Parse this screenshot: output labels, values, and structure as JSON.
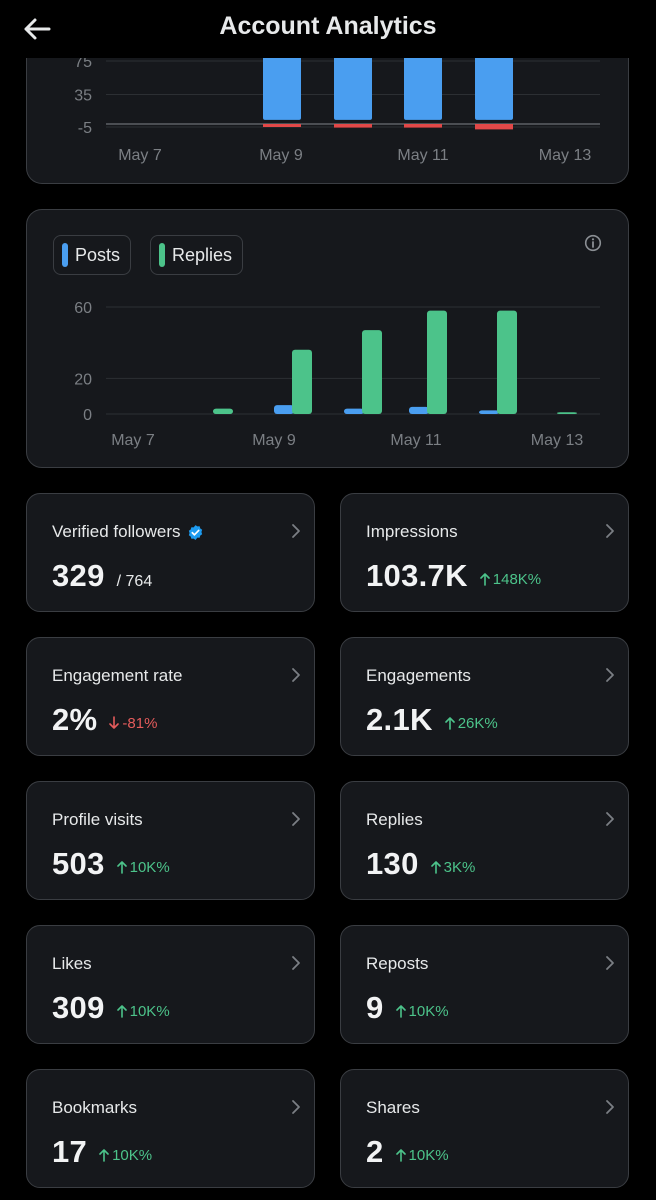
{
  "header": {
    "title": "Account Analytics"
  },
  "chart_top": {
    "type": "bar",
    "y_ticks": [
      "75",
      "35",
      "-5"
    ],
    "x_ticks": [
      "May 7",
      "May 9",
      "May 11",
      "May 13"
    ],
    "colors": {
      "positive": "#4a9ef0",
      "negative": "#e24848"
    }
  },
  "chart_data": [
    {
      "type": "bar",
      "categories": [
        "May 8",
        "May 9",
        "May 10",
        "May 11",
        "May 12"
      ],
      "series": [
        {
          "values": [
            0,
            85,
            85,
            85,
            80
          ],
          "color": "#4a9ef0"
        },
        {
          "values": [
            0,
            -1,
            -2,
            -2,
            -3
          ],
          "color": "#e24848"
        }
      ],
      "x_tick_labels": [
        "May 7",
        "May 9",
        "May 11",
        "May 13"
      ],
      "y_tick_labels": [
        "75",
        "35",
        "-5"
      ],
      "ylim": [
        -5,
        75
      ]
    },
    {
      "type": "bar",
      "categories": [
        "May 7",
        "May 8",
        "May 9",
        "May 10",
        "May 11",
        "May 12",
        "May 13"
      ],
      "series": [
        {
          "name": "Posts",
          "values": [
            0,
            0,
            5,
            3,
            4,
            2,
            0
          ],
          "color": "#4a9ef0"
        },
        {
          "name": "Replies",
          "values": [
            0,
            3,
            36,
            47,
            58,
            58,
            1
          ],
          "color": "#4cc38a"
        }
      ],
      "x_tick_labels": [
        "May 7",
        "May 9",
        "May 11",
        "May 13"
      ],
      "y_tick_labels": [
        "60",
        "20",
        "0"
      ],
      "ylim": [
        0,
        60
      ],
      "legend": "top-left"
    }
  ],
  "chart_bottom": {
    "legend": [
      {
        "label": "Posts",
        "color": "#4a9ef0"
      },
      {
        "label": "Replies",
        "color": "#4cc38a"
      }
    ],
    "y_ticks": [
      "60",
      "20",
      "0"
    ],
    "x_ticks": [
      "May 7",
      "May 9",
      "May 11",
      "May 13"
    ]
  },
  "stats": [
    {
      "label": "Verified followers",
      "value": "329",
      "sub": "/ 764",
      "change": "",
      "direction": "none",
      "verified": true
    },
    {
      "label": "Impressions",
      "value": "103.7K",
      "sub": "",
      "change": "148K%",
      "direction": "up"
    },
    {
      "label": "Engagement rate",
      "value": "2%",
      "sub": "",
      "change": "-81%",
      "direction": "down"
    },
    {
      "label": "Engagements",
      "value": "2.1K",
      "sub": "",
      "change": "26K%",
      "direction": "up"
    },
    {
      "label": "Profile visits",
      "value": "503",
      "sub": "",
      "change": "10K%",
      "direction": "up"
    },
    {
      "label": "Replies",
      "value": "130",
      "sub": "",
      "change": "3K%",
      "direction": "up"
    },
    {
      "label": "Likes",
      "value": "309",
      "sub": "",
      "change": "10K%",
      "direction": "up"
    },
    {
      "label": "Reposts",
      "value": "9",
      "sub": "",
      "change": "10K%",
      "direction": "up"
    },
    {
      "label": "Bookmarks",
      "value": "17",
      "sub": "",
      "change": "10K%",
      "direction": "up"
    },
    {
      "label": "Shares",
      "value": "2",
      "sub": "",
      "change": "10K%",
      "direction": "up"
    }
  ]
}
